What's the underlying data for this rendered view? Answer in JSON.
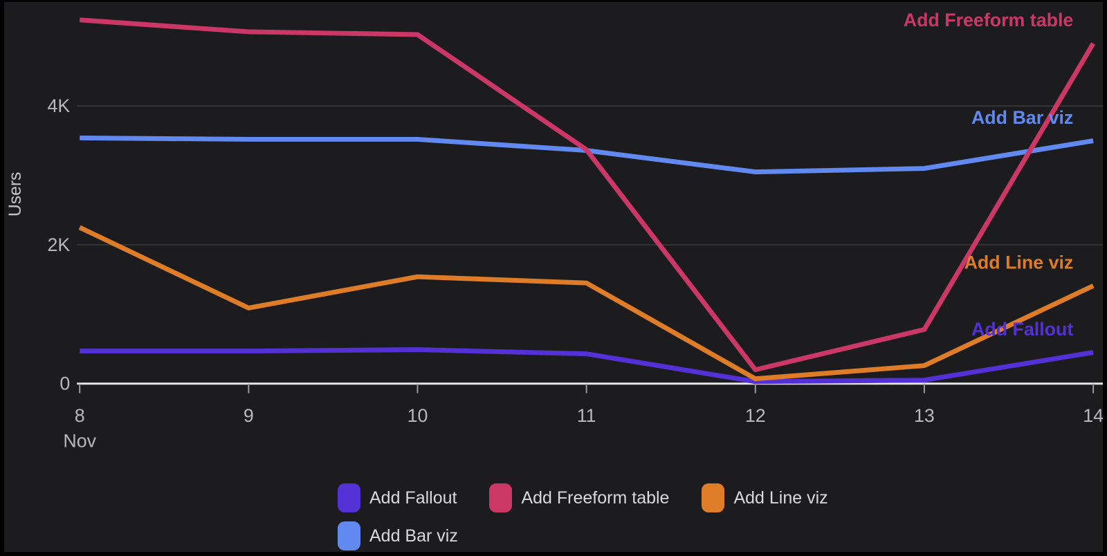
{
  "chart_data": {
    "type": "line",
    "title": "",
    "xlabel": "",
    "ylabel": "Users",
    "x_month_label": "Nov",
    "categories": [
      "8",
      "9",
      "10",
      "11",
      "12",
      "13",
      "14"
    ],
    "y_ticks": [
      {
        "value": 0,
        "label": "0"
      },
      {
        "value": 2000,
        "label": "2K"
      },
      {
        "value": 4000,
        "label": "4K"
      }
    ],
    "ylim": [
      0,
      5500
    ],
    "grid": "horizontal-only",
    "legend_position": "bottom",
    "series": [
      {
        "name": "Add Fallout",
        "color": "#5431d6",
        "values": [
          470,
          470,
          490,
          430,
          30,
          50,
          450
        ]
      },
      {
        "name": "Add Freeform table",
        "color": "#cb3766",
        "values": [
          5240,
          5070,
          5030,
          3370,
          200,
          780,
          4900
        ]
      },
      {
        "name": "Add Line viz",
        "color": "#de7c28",
        "values": [
          2250,
          1090,
          1540,
          1450,
          70,
          260,
          1410
        ]
      },
      {
        "name": "Add Bar viz",
        "color": "#6189f0",
        "values": [
          3540,
          3520,
          3520,
          3360,
          3050,
          3100,
          3500
        ]
      }
    ],
    "series_end_labels": [
      "Add Freeform table",
      "Add Bar viz",
      "Add Line viz",
      "Add Fallout"
    ],
    "draw_order": [
      "Add Bar viz",
      "Add Fallout",
      "Add Line viz",
      "Add Freeform table"
    ]
  },
  "theme": {
    "background": "#1c1c1e",
    "frame": "#000000",
    "grid_color": "#3d3d3d",
    "axis_color": "#e6e6e6",
    "tick_mark_color": "#9c9c9c",
    "tick_text_color": "#b9b9b9",
    "axis_title_color": "#c6c6c6",
    "legend_text_color": "#d9d9d9"
  }
}
